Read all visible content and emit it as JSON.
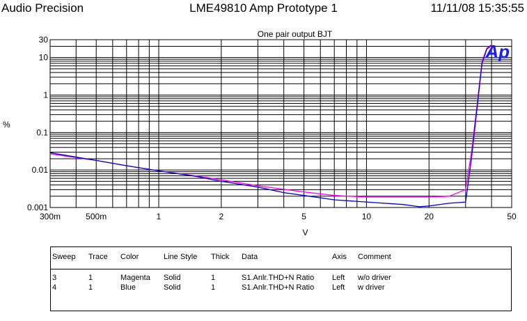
{
  "header": {
    "left": "Audio Precision",
    "center": "LME49810 Amp Prototype 1",
    "right": "11/11/08 15:35:55"
  },
  "chart_data": {
    "type": "line",
    "title": "One pair output BJT",
    "xlabel": "V",
    "ylabel": "%",
    "xscale": "log",
    "yscale": "log",
    "xlim": [
      0.3,
      50
    ],
    "ylim": [
      0.001,
      30
    ],
    "x_ticks": [
      {
        "v": 0.3,
        "label": "300m"
      },
      {
        "v": 0.5,
        "label": "500m"
      },
      {
        "v": 1,
        "label": "1"
      },
      {
        "v": 2,
        "label": "2"
      },
      {
        "v": 5,
        "label": "5"
      },
      {
        "v": 10,
        "label": "10"
      },
      {
        "v": 20,
        "label": "20"
      },
      {
        "v": 50,
        "label": "50"
      }
    ],
    "y_ticks": [
      {
        "v": 0.001,
        "label": "0.001"
      },
      {
        "v": 0.01,
        "label": "0.01"
      },
      {
        "v": 0.1,
        "label": "0.1"
      },
      {
        "v": 1,
        "label": "1"
      },
      {
        "v": 10,
        "label": "10"
      },
      {
        "v": 30,
        "label": "30"
      }
    ],
    "grid": true,
    "logo": "Ap",
    "series": [
      {
        "color": "#ff00ff",
        "points": [
          [
            0.3,
            0.027
          ],
          [
            0.5,
            0.018
          ],
          [
            0.7,
            0.013
          ],
          [
            1,
            0.0095
          ],
          [
            1.5,
            0.007
          ],
          [
            2,
            0.0055
          ],
          [
            3,
            0.0038
          ],
          [
            5,
            0.0026
          ],
          [
            7,
            0.0021
          ],
          [
            10,
            0.0019
          ],
          [
            15,
            0.0019
          ],
          [
            20,
            0.0019
          ],
          [
            25,
            0.002
          ],
          [
            30,
            0.003
          ],
          [
            32,
            0.03
          ],
          [
            34,
            0.5
          ],
          [
            36,
            8
          ],
          [
            38,
            18
          ],
          [
            40,
            22
          ]
        ]
      },
      {
        "color": "#0000cc",
        "points": [
          [
            0.3,
            0.029
          ],
          [
            0.5,
            0.018
          ],
          [
            0.7,
            0.013
          ],
          [
            1,
            0.0095
          ],
          [
            1.5,
            0.0068
          ],
          [
            2,
            0.005
          ],
          [
            3,
            0.0035
          ],
          [
            4,
            0.0025
          ],
          [
            5,
            0.0021
          ],
          [
            7,
            0.0016
          ],
          [
            10,
            0.0014
          ],
          [
            15,
            0.0012
          ],
          [
            18,
            0.00105
          ],
          [
            20,
            0.0011
          ],
          [
            25,
            0.0013
          ],
          [
            30,
            0.0014
          ],
          [
            32,
            0.02
          ],
          [
            34,
            0.4
          ],
          [
            36,
            7
          ],
          [
            38,
            17
          ],
          [
            40,
            21
          ]
        ]
      }
    ]
  },
  "legend": {
    "headers": [
      "Sweep",
      "Trace",
      "Color",
      "Line Style",
      "Thick",
      "Data",
      "Axis",
      "Comment"
    ],
    "rows": [
      [
        "3",
        "1",
        "Magenta",
        "Solid",
        "1",
        "S1.Anlr.THD+N Ratio",
        "Left",
        "w/o driver"
      ],
      [
        "4",
        "1",
        "Blue",
        "Solid",
        "1",
        "S1.Anlr.THD+N Ratio",
        "Left",
        "w driver"
      ]
    ]
  }
}
